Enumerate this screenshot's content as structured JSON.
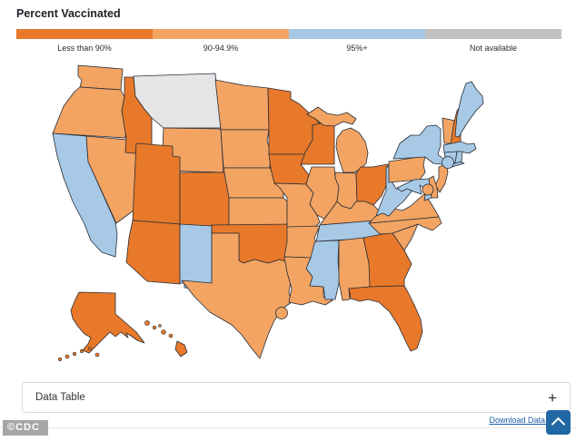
{
  "page": {
    "title": "Percent Vaccinated"
  },
  "legend": {
    "categories": [
      {
        "id": "lt90",
        "label": "Less than 90%",
        "color": "#e8792a"
      },
      {
        "id": "90-94",
        "label": "90-94.9%",
        "color": "#f3a463"
      },
      {
        "id": "95plus",
        "label": "95%+",
        "color": "#a7c9e6"
      },
      {
        "id": "na",
        "label": "Not available",
        "color": "#c2c2c2",
        "map_color": "#e5e5e7"
      }
    ]
  },
  "map": {
    "states": [
      {
        "id": "WA",
        "name": "Washington",
        "category": "90-94"
      },
      {
        "id": "OR",
        "name": "Oregon",
        "category": "90-94"
      },
      {
        "id": "CA",
        "name": "California",
        "category": "95plus"
      },
      {
        "id": "NV",
        "name": "Nevada",
        "category": "90-94"
      },
      {
        "id": "ID",
        "name": "Idaho",
        "category": "lt90"
      },
      {
        "id": "MT",
        "name": "Montana",
        "category": "na"
      },
      {
        "id": "WY",
        "name": "Wyoming",
        "category": "90-94"
      },
      {
        "id": "UT",
        "name": "Utah",
        "category": "lt90"
      },
      {
        "id": "CO",
        "name": "Colorado",
        "category": "lt90"
      },
      {
        "id": "AZ",
        "name": "Arizona",
        "category": "lt90"
      },
      {
        "id": "NM",
        "name": "New Mexico",
        "category": "95plus"
      },
      {
        "id": "ND",
        "name": "North Dakota",
        "category": "90-94"
      },
      {
        "id": "SD",
        "name": "South Dakota",
        "category": "90-94"
      },
      {
        "id": "NE",
        "name": "Nebraska",
        "category": "90-94"
      },
      {
        "id": "KS",
        "name": "Kansas",
        "category": "90-94"
      },
      {
        "id": "OK",
        "name": "Oklahoma",
        "category": "lt90"
      },
      {
        "id": "TX",
        "name": "Texas",
        "category": "90-94"
      },
      {
        "id": "MN",
        "name": "Minnesota",
        "category": "lt90"
      },
      {
        "id": "IA",
        "name": "Iowa",
        "category": "lt90"
      },
      {
        "id": "MO",
        "name": "Missouri",
        "category": "90-94"
      },
      {
        "id": "AR",
        "name": "Arkansas",
        "category": "90-94"
      },
      {
        "id": "LA",
        "name": "Louisiana",
        "category": "90-94"
      },
      {
        "id": "WI",
        "name": "Wisconsin",
        "category": "lt90"
      },
      {
        "id": "IL",
        "name": "Illinois",
        "category": "90-94"
      },
      {
        "id": "MI",
        "name": "Michigan",
        "category": "90-94"
      },
      {
        "id": "IN",
        "name": "Indiana",
        "category": "90-94"
      },
      {
        "id": "OH",
        "name": "Ohio",
        "category": "lt90"
      },
      {
        "id": "KY",
        "name": "Kentucky",
        "category": "90-94"
      },
      {
        "id": "TN",
        "name": "Tennessee",
        "category": "95plus"
      },
      {
        "id": "MS",
        "name": "Mississippi",
        "category": "95plus"
      },
      {
        "id": "AL",
        "name": "Alabama",
        "category": "90-94"
      },
      {
        "id": "GA",
        "name": "Georgia",
        "category": "lt90"
      },
      {
        "id": "FL",
        "name": "Florida",
        "category": "lt90"
      },
      {
        "id": "SC",
        "name": "South Carolina",
        "category": "90-94"
      },
      {
        "id": "NC",
        "name": "North Carolina",
        "category": "90-94"
      },
      {
        "id": "VA",
        "name": "Virginia",
        "category": "90-94"
      },
      {
        "id": "WV",
        "name": "West Virginia",
        "category": "95plus"
      },
      {
        "id": "PA",
        "name": "Pennsylvania",
        "category": "90-94"
      },
      {
        "id": "NY",
        "name": "New York",
        "category": "95plus"
      },
      {
        "id": "NJ",
        "name": "New Jersey",
        "category": "90-94"
      },
      {
        "id": "DE",
        "name": "Delaware",
        "category": "90-94"
      },
      {
        "id": "MD",
        "name": "Maryland",
        "category": "95plus"
      },
      {
        "id": "VT",
        "name": "Vermont",
        "category": "90-94"
      },
      {
        "id": "NH",
        "name": "New Hampshire",
        "category": "lt90"
      },
      {
        "id": "ME",
        "name": "Maine",
        "category": "95plus"
      },
      {
        "id": "MA",
        "name": "Massachusetts",
        "category": "95plus"
      },
      {
        "id": "CT",
        "name": "Connecticut",
        "category": "95plus"
      },
      {
        "id": "RI",
        "name": "Rhode Island",
        "category": "95plus"
      },
      {
        "id": "AK",
        "name": "Alaska",
        "category": "lt90"
      },
      {
        "id": "HI",
        "name": "Hawaii",
        "category": "lt90"
      }
    ],
    "city_markers": [
      {
        "id": "nyc-area",
        "category": "95plus"
      },
      {
        "id": "dc-area",
        "category": "90-94"
      },
      {
        "id": "houston-area",
        "category": "90-94"
      }
    ]
  },
  "footer": {
    "data_table_label": "Data Table",
    "expand_icon": "+",
    "download_link": "Download Data (CSV)",
    "watermark": "©CDC"
  }
}
